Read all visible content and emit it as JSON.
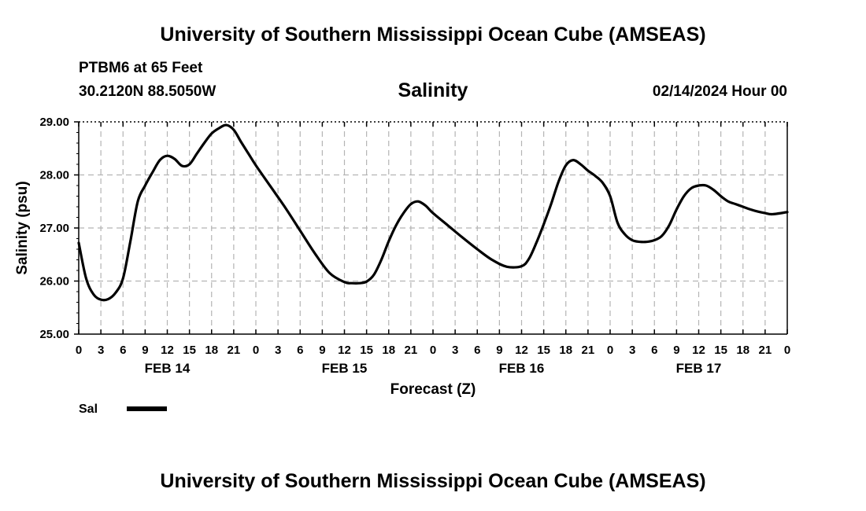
{
  "header": {
    "title": "University of Southern Mississippi Ocean Cube (AMSEAS)",
    "station": "PTBM6 at 65 Feet",
    "coords": "30.2120N  88.5050W",
    "variable": "Salinity",
    "datetime": "02/14/2024 Hour 00"
  },
  "footer": {
    "title": "University of Southern Mississippi Ocean Cube (AMSEAS)"
  },
  "chart_data": {
    "type": "line",
    "title": "Salinity",
    "xlabel": "Forecast (Z)",
    "ylabel": "Salinity (psu)",
    "ylim": [
      25.0,
      29.0
    ],
    "xlim": [
      0,
      96
    ],
    "y_ticks": [
      "25.00",
      "26.00",
      "27.00",
      "28.00",
      "29.00"
    ],
    "x_tick_labels": [
      "0",
      "3",
      "6",
      "9",
      "12",
      "15",
      "18",
      "21",
      "0",
      "3",
      "6",
      "9",
      "12",
      "15",
      "18",
      "21",
      "0",
      "3",
      "6",
      "9",
      "12",
      "15",
      "18",
      "21",
      "0",
      "3",
      "6",
      "9",
      "12",
      "15",
      "18",
      "21",
      "0"
    ],
    "day_labels": [
      {
        "label": "FEB 14",
        "at_hour": 12
      },
      {
        "label": "FEB 15",
        "at_hour": 36
      },
      {
        "label": "FEB 16",
        "at_hour": 60
      },
      {
        "label": "FEB 17",
        "at_hour": 84
      }
    ],
    "grid": true,
    "legend": [
      {
        "name": "Sal",
        "color": "#000000"
      }
    ],
    "series": [
      {
        "name": "Sal",
        "x": [
          0,
          1,
          2,
          3,
          4,
          5,
          6,
          7,
          8,
          9,
          10,
          11,
          12,
          13,
          14,
          15,
          16,
          17,
          18,
          19,
          20,
          21,
          22,
          23,
          24,
          26,
          28,
          30,
          32,
          34,
          36,
          37,
          38,
          39,
          40,
          41,
          42,
          43,
          44,
          45,
          46,
          47,
          48,
          50,
          52,
          54,
          56,
          58,
          60,
          61,
          62,
          63,
          64,
          65,
          66,
          67,
          68,
          69,
          70,
          71,
          72,
          73,
          74,
          75,
          76,
          77,
          78,
          79,
          80,
          81,
          82,
          83,
          84,
          85,
          86,
          87,
          88,
          89,
          90,
          91,
          92,
          93,
          94,
          96
        ],
        "values": [
          26.72,
          26.05,
          25.75,
          25.65,
          25.66,
          25.78,
          26.05,
          26.75,
          27.5,
          27.8,
          28.05,
          28.28,
          28.36,
          28.3,
          28.17,
          28.2,
          28.4,
          28.6,
          28.78,
          28.88,
          28.94,
          28.85,
          28.62,
          28.4,
          28.18,
          27.78,
          27.38,
          26.95,
          26.52,
          26.15,
          25.98,
          25.96,
          25.96,
          25.99,
          26.12,
          26.4,
          26.75,
          27.05,
          27.28,
          27.45,
          27.5,
          27.42,
          27.28,
          27.05,
          26.82,
          26.6,
          26.4,
          26.27,
          26.28,
          26.42,
          26.72,
          27.07,
          27.45,
          27.87,
          28.18,
          28.28,
          28.2,
          28.08,
          27.98,
          27.85,
          27.6,
          27.1,
          26.88,
          26.77,
          26.74,
          26.74,
          26.77,
          26.85,
          27.05,
          27.35,
          27.6,
          27.75,
          27.8,
          27.8,
          27.72,
          27.6,
          27.5,
          27.45,
          27.4,
          27.35,
          27.31,
          27.28,
          27.26,
          27.3
        ]
      }
    ]
  }
}
